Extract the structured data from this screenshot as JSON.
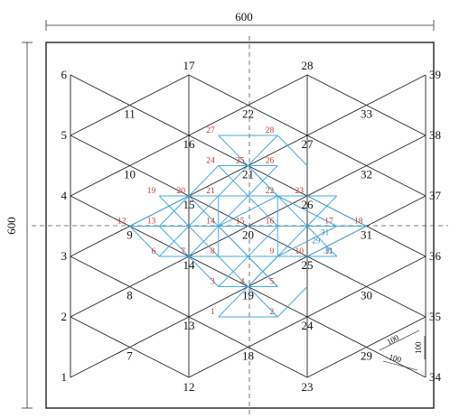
{
  "dimensions": {
    "top_width": "600",
    "left_height": "600",
    "segment_a": "100",
    "segment_b": "100",
    "segment_c": "100"
  },
  "black_nodes": [
    {
      "label": "1",
      "x": 0,
      "y": 0
    },
    {
      "label": "2",
      "x": 0,
      "y": 1
    },
    {
      "label": "3",
      "x": 0,
      "y": 2
    },
    {
      "label": "4",
      "x": 0,
      "y": 3
    },
    {
      "label": "5",
      "x": 0,
      "y": 4
    },
    {
      "label": "6",
      "x": 0,
      "y": 5
    },
    {
      "label": "7",
      "x": 1,
      "y": 0.5
    },
    {
      "label": "8",
      "x": 1,
      "y": 1.5
    },
    {
      "label": "9",
      "x": 1,
      "y": 2.5
    },
    {
      "label": "10",
      "x": 1,
      "y": 3.5
    },
    {
      "label": "11",
      "x": 1,
      "y": 4.5
    },
    {
      "label": "12",
      "x": 2,
      "y": 0
    },
    {
      "label": "13",
      "x": 2,
      "y": 1
    },
    {
      "label": "14",
      "x": 2,
      "y": 2
    },
    {
      "label": "15",
      "x": 2,
      "y": 3
    },
    {
      "label": "16",
      "x": 2,
      "y": 4
    },
    {
      "label": "17",
      "x": 2,
      "y": 5
    },
    {
      "label": "18",
      "x": 3,
      "y": 0.5
    },
    {
      "label": "19",
      "x": 3,
      "y": 1.5
    },
    {
      "label": "20",
      "x": 3,
      "y": 2.5
    },
    {
      "label": "21",
      "x": 3,
      "y": 3.5
    },
    {
      "label": "22",
      "x": 3,
      "y": 4.5
    },
    {
      "label": "23",
      "x": 4,
      "y": 0
    },
    {
      "label": "24",
      "x": 4,
      "y": 1
    },
    {
      "label": "25",
      "x": 4,
      "y": 2
    },
    {
      "label": "26",
      "x": 4,
      "y": 3
    },
    {
      "label": "27",
      "x": 4,
      "y": 4
    },
    {
      "label": "28",
      "x": 4,
      "y": 5
    },
    {
      "label": "29",
      "x": 5,
      "y": 0.5
    },
    {
      "label": "30",
      "x": 5,
      "y": 1.5
    },
    {
      "label": "31",
      "x": 5,
      "y": 2.5
    },
    {
      "label": "32",
      "x": 5,
      "y": 3.5
    },
    {
      "label": "33",
      "x": 5,
      "y": 4.5
    },
    {
      "label": "34",
      "x": 6,
      "y": 0
    },
    {
      "label": "35",
      "x": 6,
      "y": 1
    },
    {
      "label": "36",
      "x": 6,
      "y": 2
    },
    {
      "label": "37",
      "x": 6,
      "y": 3
    },
    {
      "label": "38",
      "x": 6,
      "y": 4
    },
    {
      "label": "39",
      "x": 6,
      "y": 5
    }
  ],
  "red_nodes": [
    {
      "label": "1",
      "x": 2.5,
      "y": 1
    },
    {
      "label": "2",
      "x": 3.5,
      "y": 1
    },
    {
      "label": "3",
      "x": 2.5,
      "y": 1.5
    },
    {
      "label": "4",
      "x": 3,
      "y": 1.5
    },
    {
      "label": "5",
      "x": 3.5,
      "y": 1.5
    },
    {
      "label": "6",
      "x": 1.5,
      "y": 2
    },
    {
      "label": "7",
      "x": 2,
      "y": 2
    },
    {
      "label": "8",
      "x": 2.5,
      "y": 2
    },
    {
      "label": "9",
      "x": 3.5,
      "y": 2
    },
    {
      "label": "10",
      "x": 4,
      "y": 2
    },
    {
      "label": "11",
      "x": 4.5,
      "y": 2
    },
    {
      "label": "12",
      "x": 1,
      "y": 2.5
    },
    {
      "label": "13",
      "x": 1.5,
      "y": 2.5
    },
    {
      "label": "14",
      "x": 2.5,
      "y": 2.5
    },
    {
      "label": "15",
      "x": 3,
      "y": 2.5
    },
    {
      "label": "16",
      "x": 3.5,
      "y": 2.5
    },
    {
      "label": "17",
      "x": 4.5,
      "y": 2.5
    },
    {
      "label": "18",
      "x": 5,
      "y": 2.5
    },
    {
      "label": "19",
      "x": 1.5,
      "y": 3
    },
    {
      "label": "20",
      "x": 2,
      "y": 3
    },
    {
      "label": "21",
      "x": 2.5,
      "y": 3
    },
    {
      "label": "22",
      "x": 3.5,
      "y": 3
    },
    {
      "label": "23",
      "x": 4,
      "y": 3
    },
    {
      "label": "24",
      "x": 2.5,
      "y": 3.5
    },
    {
      "label": "25",
      "x": 3,
      "y": 3.5
    },
    {
      "label": "26",
      "x": 3.5,
      "y": 3.5
    },
    {
      "label": "27",
      "x": 2.5,
      "y": 4
    },
    {
      "label": "28",
      "x": 3.5,
      "y": 4
    }
  ],
  "blue_nodes": [
    {
      "label": "29",
      "x": 4.15,
      "y": 2.22
    },
    {
      "label": "30",
      "x": 4.35,
      "y": 2.05
    },
    {
      "label": "31",
      "x": 4.3,
      "y": 2.35
    }
  ]
}
